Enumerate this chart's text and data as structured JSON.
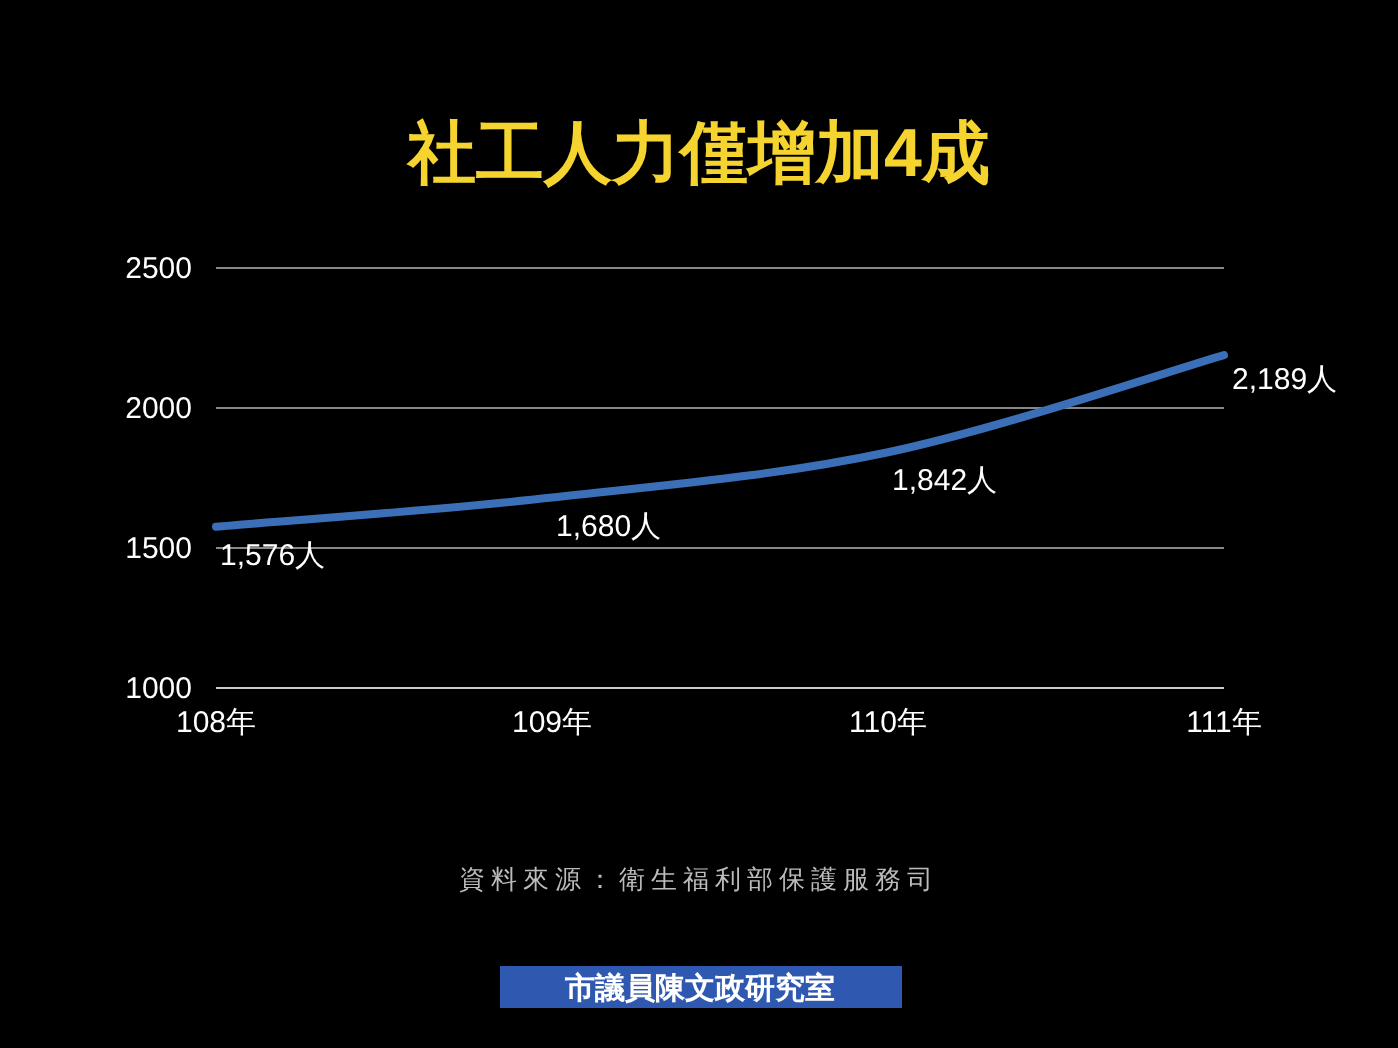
{
  "chart_data": {
    "type": "line",
    "title": "社工人力僅增加4成",
    "categories": [
      "108年",
      "109年",
      "110年",
      "111年"
    ],
    "series": [
      {
        "color": "#3b70b8",
        "values": [
          1576,
          1680,
          1842,
          2189
        ],
        "value_labels": [
          "1,576人",
          "1,680人",
          "1,842人",
          "2,189人"
        ]
      }
    ],
    "ylim": [
      1000,
      2500
    ],
    "yticks": [
      1000,
      1500,
      2000,
      2500
    ],
    "grid": "y",
    "marker": "none",
    "line_style": "solid",
    "annotations": [
      "資料來源：衛生福利部保護服務司",
      "市議員陳文政研究室"
    ]
  }
}
